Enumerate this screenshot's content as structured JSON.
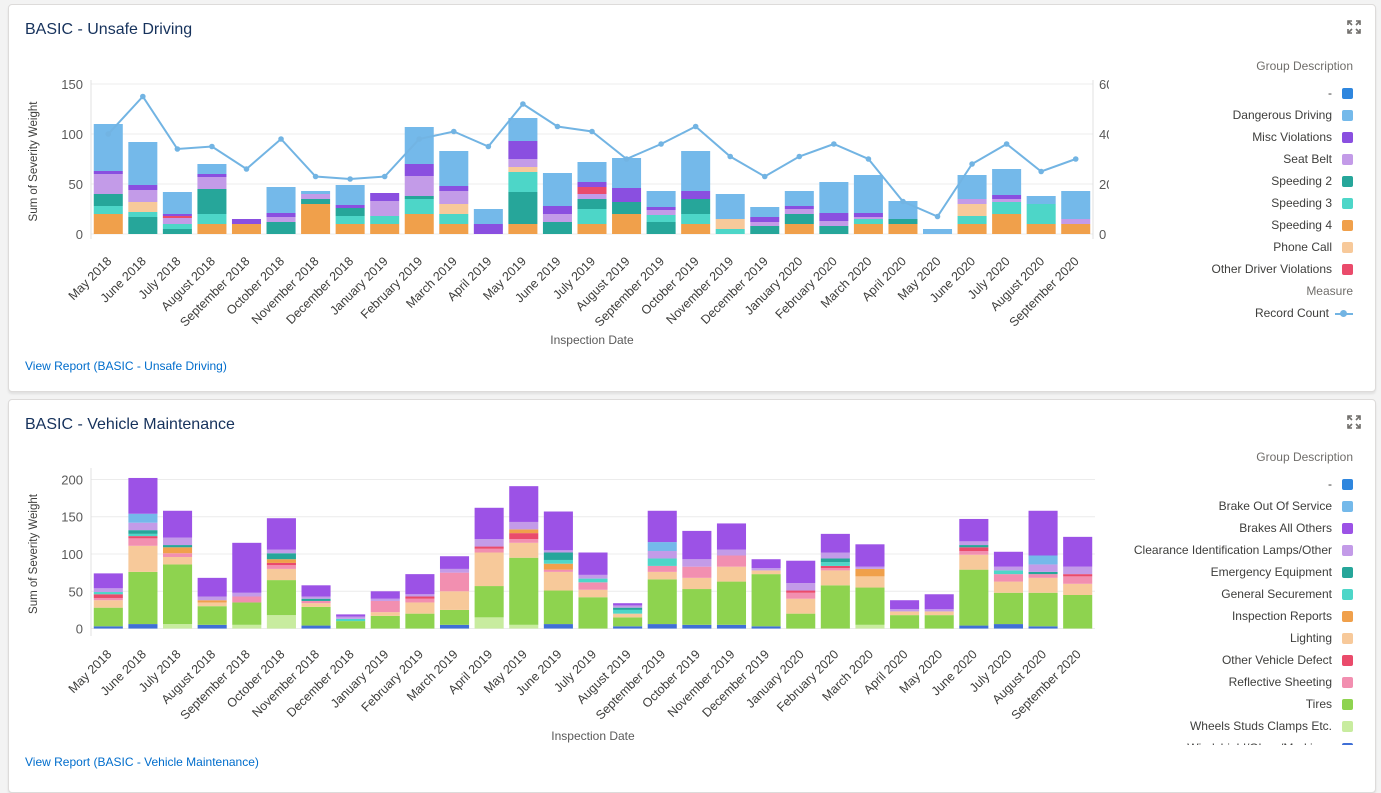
{
  "colors": {
    "dash": "#2e86de",
    "dangerous": "#74b9ea",
    "misc": "#8a4fe0",
    "seatbelt": "#c39be8",
    "speed2": "#26a69a",
    "speed3": "#4dd6c8",
    "speed4": "#f0a04b",
    "phone": "#f7c99a",
    "otherdriver": "#ea4b6b",
    "brakeout": "#74b9ea",
    "brakesall": "#9c52e6",
    "clearance": "#c39be8",
    "emergency": "#26a69a",
    "general": "#4dd6c8",
    "inspection": "#f0a04b",
    "lighting": "#f7c99a",
    "othervehicle": "#ea4b6b",
    "reflective": "#f28fb0",
    "tires": "#8ed34f",
    "wheels": "#c8ec9f",
    "windshield": "#3f6fd6",
    "line": "#72b4e3"
  },
  "card1": {
    "title": "BASIC - Unsafe Driving",
    "link": "View Report (BASIC - Unsafe Driving)",
    "legend_title": "Group Description",
    "legend": [
      {
        "label": "-",
        "color": "#2e86de"
      },
      {
        "label": "Dangerous Driving",
        "color": "#74b9ea"
      },
      {
        "label": "Misc Violations",
        "color": "#8a4fe0"
      },
      {
        "label": "Seat Belt",
        "color": "#c39be8"
      },
      {
        "label": "Speeding 2",
        "color": "#26a69a"
      },
      {
        "label": "Speeding 3",
        "color": "#4dd6c8"
      },
      {
        "label": "Speeding 4",
        "color": "#f0a04b"
      },
      {
        "label": "Phone Call",
        "color": "#f7c99a"
      },
      {
        "label": "Other Driver Violations",
        "color": "#ea4b6b"
      }
    ],
    "measure_title": "Measure",
    "measure_label": "Record Count"
  },
  "card2": {
    "title": "BASIC - Vehicle Maintenance",
    "link": "View Report (BASIC - Vehicle Maintenance)",
    "legend_title": "Group Description",
    "legend": [
      {
        "label": "-",
        "color": "#2e86de"
      },
      {
        "label": "Brake Out Of Service",
        "color": "#74b9ea"
      },
      {
        "label": "Brakes All Others",
        "color": "#9c52e6"
      },
      {
        "label": "Clearance Identification Lamps/Other",
        "color": "#c39be8"
      },
      {
        "label": "Emergency Equipment",
        "color": "#26a69a"
      },
      {
        "label": "General Securement",
        "color": "#4dd6c8"
      },
      {
        "label": "Inspection Reports",
        "color": "#f0a04b"
      },
      {
        "label": "Lighting",
        "color": "#f7c99a"
      },
      {
        "label": "Other Vehicle Defect",
        "color": "#ea4b6b"
      },
      {
        "label": "Reflective Sheeting",
        "color": "#f28fb0"
      },
      {
        "label": "Tires",
        "color": "#8ed34f"
      },
      {
        "label": "Wheels Studs Clamps Etc.",
        "color": "#c8ec9f"
      },
      {
        "label": "Windshield/Glass/Markings",
        "color": "#3f6fd6"
      }
    ]
  },
  "chart_data": [
    {
      "type": "bar",
      "stacked": true,
      "title": "BASIC - Unsafe Driving",
      "xlabel": "Inspection Date",
      "ylabel": "Sum of Severity Weight",
      "y2label": "Record Count",
      "ylim": [
        -5,
        150
      ],
      "y2lim": [
        -2,
        60
      ],
      "yticks": [
        0,
        50,
        100,
        150
      ],
      "y2ticks": [
        0,
        20,
        40,
        60
      ],
      "categories": [
        "May 2018",
        "June 2018",
        "July 2018",
        "August 2018",
        "September 2018",
        "October 2018",
        "November 2018",
        "December 2018",
        "January 2019",
        "February 2019",
        "March 2019",
        "April 2019",
        "May 2019",
        "June 2019",
        "July 2019",
        "August 2019",
        "September 2019",
        "October 2019",
        "November 2019",
        "December 2019",
        "January 2020",
        "February 2020",
        "March 2020",
        "April 2020",
        "May 2020",
        "June 2020",
        "July 2020",
        "August 2020",
        "September 2020"
      ],
      "series": [
        {
          "name": "-",
          "key": "dash",
          "values": [
            0,
            0,
            0,
            0,
            0,
            0,
            0,
            0,
            0,
            0,
            0,
            0,
            0,
            0,
            0,
            0,
            0,
            0,
            0,
            0,
            0,
            0,
            0,
            0,
            0,
            0,
            0,
            0,
            0
          ]
        },
        {
          "name": "Speeding 4",
          "key": "speed4",
          "values": [
            20,
            0,
            0,
            10,
            10,
            0,
            30,
            10,
            10,
            20,
            10,
            0,
            10,
            0,
            10,
            20,
            0,
            10,
            0,
            0,
            10,
            0,
            10,
            10,
            0,
            10,
            20,
            10,
            10
          ]
        },
        {
          "name": "Speeding 2",
          "key": "speed2",
          "values": [
            0,
            17,
            5,
            0,
            0,
            12,
            0,
            0,
            0,
            0,
            0,
            0,
            32,
            12,
            0,
            0,
            12,
            0,
            0,
            8,
            5,
            8,
            0,
            0,
            0,
            0,
            0,
            0,
            0
          ]
        },
        {
          "name": "Speeding 3",
          "key": "speed3",
          "values": [
            8,
            5,
            5,
            10,
            0,
            0,
            0,
            8,
            8,
            15,
            10,
            0,
            20,
            0,
            15,
            0,
            7,
            10,
            5,
            0,
            0,
            0,
            5,
            0,
            0,
            8,
            12,
            20,
            0
          ]
        },
        {
          "name": "Speeding 2",
          "key": "speed2",
          "values": [
            12,
            0,
            0,
            25,
            0,
            0,
            5,
            8,
            0,
            3,
            0,
            0,
            0,
            0,
            10,
            12,
            0,
            15,
            0,
            0,
            5,
            0,
            0,
            5,
            0,
            0,
            0,
            0,
            0
          ]
        },
        {
          "name": "Phone Call",
          "key": "phone",
          "values": [
            0,
            10,
            0,
            0,
            0,
            0,
            0,
            0,
            0,
            0,
            10,
            0,
            5,
            0,
            0,
            0,
            0,
            0,
            10,
            0,
            0,
            0,
            0,
            0,
            0,
            12,
            0,
            0,
            0
          ]
        },
        {
          "name": "Seat Belt",
          "key": "seatbelt",
          "values": [
            20,
            12,
            6,
            12,
            0,
            5,
            5,
            0,
            15,
            20,
            13,
            0,
            8,
            8,
            5,
            0,
            5,
            0,
            0,
            4,
            5,
            5,
            2,
            0,
            0,
            5,
            3,
            0,
            5
          ]
        },
        {
          "name": "Other Driver Violations",
          "key": "otherdriver",
          "values": [
            0,
            0,
            2,
            0,
            0,
            0,
            0,
            0,
            0,
            0,
            0,
            0,
            0,
            0,
            7,
            0,
            0,
            0,
            0,
            0,
            0,
            0,
            0,
            0,
            0,
            0,
            0,
            0,
            0
          ]
        },
        {
          "name": "Misc Violations",
          "key": "misc",
          "values": [
            3,
            5,
            2,
            3,
            5,
            4,
            0,
            3,
            8,
            12,
            5,
            10,
            18,
            8,
            5,
            14,
            3,
            8,
            0,
            5,
            3,
            8,
            4,
            0,
            0,
            0,
            4,
            0,
            0
          ]
        },
        {
          "name": "Dangerous Driving",
          "key": "dangerous",
          "values": [
            47,
            43,
            22,
            10,
            0,
            26,
            3,
            20,
            0,
            37,
            35,
            15,
            23,
            33,
            20,
            30,
            16,
            40,
            25,
            10,
            15,
            31,
            38,
            18,
            5,
            24,
            26,
            8,
            28
          ]
        }
      ],
      "line": {
        "name": "Record Count",
        "values": [
          40,
          55,
          34,
          35,
          26,
          38,
          23,
          22,
          23,
          38,
          41,
          35,
          52,
          43,
          41,
          30,
          36,
          43,
          31,
          23,
          31,
          36,
          30,
          13,
          7,
          28,
          36,
          25,
          30
        ]
      }
    },
    {
      "type": "bar",
      "stacked": true,
      "title": "BASIC - Vehicle Maintenance",
      "xlabel": "Inspection Date",
      "ylabel": "Sum of Severity Weight",
      "ylim": [
        -10,
        210
      ],
      "yticks": [
        0,
        50,
        100,
        150,
        200
      ],
      "categories": [
        "May 2018",
        "June 2018",
        "July 2018",
        "August 2018",
        "September 2018",
        "October 2018",
        "November 2018",
        "December 2018",
        "January 2019",
        "February 2019",
        "March 2019",
        "April 2019",
        "May 2019",
        "June 2019",
        "July 2019",
        "August 2019",
        "September 2019",
        "October 2019",
        "November 2019",
        "December 2019",
        "January 2020",
        "February 2020",
        "March 2020",
        "April 2020",
        "May 2020",
        "June 2020",
        "July 2020",
        "August 2020",
        "September 2020"
      ],
      "series": [
        {
          "name": "Windshield/Glass/Markings",
          "key": "windshield",
          "values": [
            3,
            6,
            0,
            5,
            0,
            0,
            4,
            0,
            0,
            0,
            5,
            0,
            0,
            6,
            0,
            3,
            6,
            5,
            5,
            3,
            0,
            0,
            0,
            0,
            0,
            4,
            6,
            3,
            0
          ]
        },
        {
          "name": "Wheels Studs Clamps Etc.",
          "key": "wheels",
          "values": [
            0,
            0,
            6,
            0,
            5,
            18,
            0,
            0,
            0,
            0,
            0,
            15,
            5,
            0,
            0,
            0,
            0,
            0,
            0,
            0,
            0,
            0,
            5,
            0,
            0,
            0,
            0,
            0,
            0
          ]
        },
        {
          "name": "Tires",
          "key": "tires",
          "values": [
            25,
            70,
            80,
            25,
            30,
            47,
            25,
            10,
            17,
            20,
            20,
            42,
            90,
            45,
            42,
            12,
            60,
            48,
            58,
            70,
            20,
            58,
            50,
            18,
            18,
            75,
            42,
            45,
            45
          ]
        },
        {
          "name": "Lighting",
          "key": "lighting",
          "values": [
            10,
            35,
            10,
            5,
            0,
            15,
            5,
            0,
            5,
            15,
            25,
            45,
            20,
            25,
            10,
            5,
            10,
            15,
            20,
            5,
            20,
            20,
            15,
            5,
            5,
            20,
            15,
            20,
            15
          ]
        },
        {
          "name": "Reflective Sheeting",
          "key": "reflective",
          "values": [
            3,
            10,
            5,
            0,
            8,
            5,
            3,
            0,
            15,
            5,
            25,
            5,
            5,
            3,
            10,
            0,
            8,
            15,
            15,
            0,
            8,
            3,
            0,
            0,
            0,
            5,
            10,
            5,
            10
          ]
        },
        {
          "name": "Other Vehicle Defect",
          "key": "othervehicle",
          "values": [
            5,
            3,
            0,
            0,
            0,
            3,
            0,
            0,
            0,
            3,
            0,
            3,
            8,
            0,
            0,
            0,
            0,
            0,
            0,
            0,
            3,
            3,
            0,
            0,
            0,
            5,
            0,
            0,
            3
          ]
        },
        {
          "name": "Inspection Reports",
          "key": "inspection",
          "values": [
            0,
            0,
            8,
            3,
            0,
            5,
            0,
            0,
            0,
            0,
            0,
            0,
            5,
            8,
            0,
            0,
            0,
            0,
            0,
            0,
            0,
            0,
            10,
            0,
            0,
            0,
            0,
            0,
            0
          ]
        },
        {
          "name": "General Securement",
          "key": "general",
          "values": [
            3,
            3,
            0,
            0,
            0,
            0,
            0,
            3,
            0,
            0,
            0,
            0,
            0,
            5,
            5,
            5,
            10,
            0,
            0,
            0,
            0,
            5,
            0,
            0,
            0,
            0,
            5,
            0,
            0
          ]
        },
        {
          "name": "Emergency Equipment",
          "key": "emergency",
          "values": [
            0,
            5,
            3,
            0,
            0,
            8,
            3,
            0,
            0,
            0,
            0,
            0,
            0,
            10,
            0,
            3,
            0,
            0,
            0,
            0,
            0,
            5,
            0,
            0,
            0,
            3,
            0,
            3,
            0
          ]
        },
        {
          "name": "Clearance Identification Lamps/Other",
          "key": "clearance",
          "values": [
            5,
            10,
            10,
            5,
            5,
            5,
            3,
            3,
            3,
            3,
            5,
            10,
            10,
            3,
            5,
            3,
            10,
            10,
            8,
            3,
            10,
            8,
            3,
            3,
            3,
            5,
            5,
            10,
            10
          ]
        },
        {
          "name": "Brake Out Of Service",
          "key": "brakeout",
          "values": [
            0,
            12,
            0,
            0,
            0,
            0,
            0,
            0,
            0,
            0,
            0,
            0,
            0,
            0,
            0,
            0,
            12,
            0,
            0,
            0,
            0,
            0,
            0,
            0,
            0,
            0,
            0,
            12,
            0
          ]
        },
        {
          "name": "Brakes All Others",
          "key": "brakesall",
          "values": [
            20,
            48,
            36,
            25,
            67,
            42,
            15,
            3,
            10,
            27,
            17,
            42,
            48,
            52,
            30,
            3,
            42,
            38,
            35,
            12,
            30,
            25,
            30,
            12,
            20,
            30,
            20,
            60,
            40
          ]
        }
      ]
    }
  ]
}
